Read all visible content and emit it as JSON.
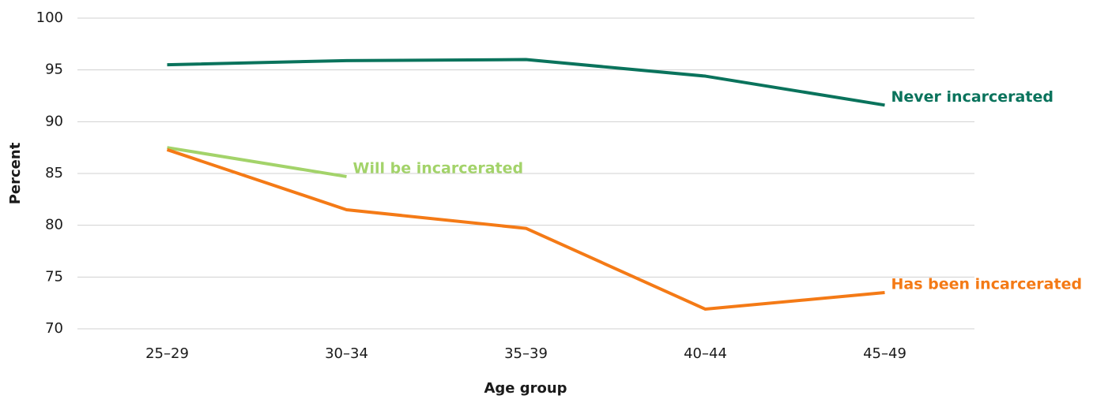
{
  "chart_data": {
    "type": "line",
    "x_label": "Age group",
    "y_label": "Percent",
    "categories": [
      "25–29",
      "30–34",
      "35–39",
      "40–44",
      "45–49"
    ],
    "series": [
      {
        "name": "Never incarcerated",
        "color": "#0a735c",
        "values": [
          95.5,
          95.9,
          96.0,
          94.4,
          91.6
        ]
      },
      {
        "name": "Will be incarcerated",
        "color": "#a3d36a",
        "values": [
          87.5,
          84.7,
          null,
          null,
          null
        ]
      },
      {
        "name": "Has been incarcerated",
        "color": "#f47a16",
        "values": [
          87.3,
          81.5,
          79.7,
          71.9,
          73.5
        ]
      }
    ],
    "ylim": [
      70,
      100
    ],
    "yticks": [
      70,
      75,
      80,
      85,
      90,
      95,
      100
    ],
    "grid": true
  }
}
